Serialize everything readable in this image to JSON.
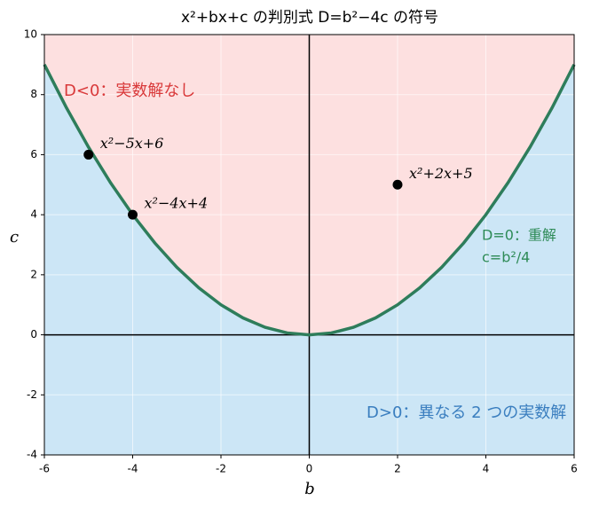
{
  "chart_data": {
    "type": "line",
    "title": "x²+bx+c の判別式 D=b²−4c の符号",
    "xlabel": "b",
    "ylabel": "c",
    "xlim": [
      -6,
      6
    ],
    "ylim": [
      -4,
      10
    ],
    "xticks": [
      -6,
      -4,
      -2,
      0,
      2,
      4,
      6
    ],
    "yticks": [
      -4,
      -2,
      0,
      2,
      4,
      6,
      8,
      10
    ],
    "grid": true,
    "region_colors": {
      "above": "#fde0e0",
      "below": "#cce6f6"
    },
    "series": [
      {
        "color": "#2e7d5b",
        "x": [
          -6,
          -5.5,
          -5,
          -4.5,
          -4,
          -3.5,
          -3,
          -2.5,
          -2,
          -1.5,
          -1,
          -0.5,
          0,
          0.5,
          1,
          1.5,
          2,
          2.5,
          3,
          3.5,
          4,
          4.5,
          5,
          5.5,
          6
        ],
        "values": [
          9,
          7.5625,
          6.25,
          5.0625,
          4,
          3.0625,
          2.25,
          1.5625,
          1,
          0.5625,
          0.25,
          0.0625,
          0,
          0.0625,
          0.25,
          0.5625,
          1,
          1.5625,
          2.25,
          3.0625,
          4,
          5.0625,
          6.25,
          7.5625,
          9
        ]
      }
    ],
    "points": {
      "color": "#000000",
      "x": [
        -5,
        -4,
        2
      ],
      "values": [
        6,
        4,
        5
      ],
      "labels": [
        "x²−5x+6",
        "x²−4x+4",
        "x²+2x+5"
      ]
    },
    "annotations": [
      {
        "text": "D<0：実数解なし",
        "color": "#d9393a"
      },
      {
        "text": "D=0：重解",
        "color": "#2e8b57"
      },
      {
        "text": "c=b²/4",
        "color": "#2e8b57"
      },
      {
        "text": "D>0：異なる 2 つの実数解",
        "color": "#3a7ebf"
      }
    ]
  }
}
